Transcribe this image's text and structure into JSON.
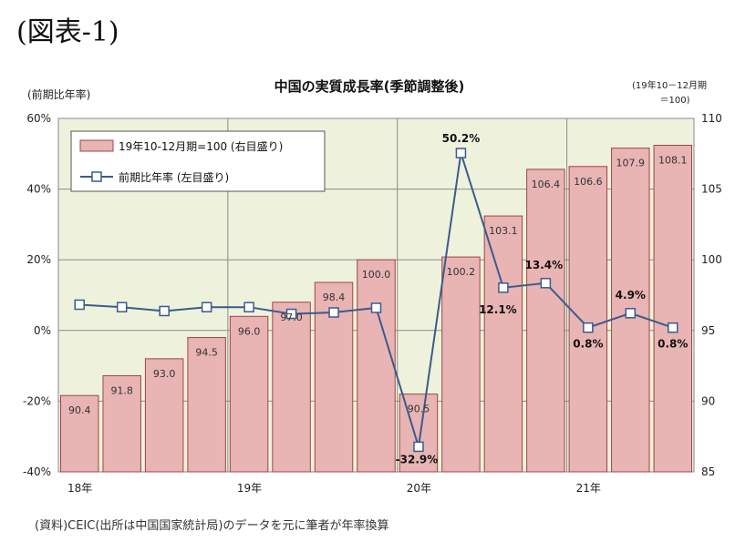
{
  "figure_label": "(図表-1)",
  "source_note": "(資料)CEIC(出所は中国国家統計局)のデータを元に筆者が年率換算",
  "chart_data": {
    "type": "bar+line",
    "title": "中国の実質成長率(季節調整後)",
    "left_axis_label": "(前期比年率)",
    "right_axis_label_line1": "(19年10－12月期",
    "right_axis_label_line2": "＝100)",
    "left_ylim": [
      -40,
      60
    ],
    "left_ticks": [
      "-40%",
      "-20%",
      "0%",
      "20%",
      "40%",
      "60%"
    ],
    "left_tick_values": [
      -40,
      -20,
      0,
      20,
      40,
      60
    ],
    "right_ylim": [
      85,
      110
    ],
    "right_ticks": [
      "85",
      "90",
      "95",
      "100",
      "105",
      "110"
    ],
    "right_tick_values": [
      85,
      90,
      95,
      100,
      105,
      110
    ],
    "x_year_labels": [
      {
        "label": "18年",
        "index": 0
      },
      {
        "label": "19年",
        "index": 4
      },
      {
        "label": "20年",
        "index": 8
      },
      {
        "label": "21年",
        "index": 12
      }
    ],
    "grid": true,
    "legend_position": "top-left",
    "series": [
      {
        "name": "19年10-12月期=100 (右目盛り)",
        "kind": "bar",
        "axis": "right",
        "color": "#e8b4b4",
        "values": [
          90.4,
          91.8,
          93.0,
          94.5,
          96.0,
          97.0,
          98.4,
          100.0,
          90.5,
          100.2,
          103.1,
          106.4,
          106.6,
          107.9,
          108.1
        ],
        "labels": [
          "90.4",
          "91.8",
          "93.0",
          "94.5",
          "96.0",
          "97.0",
          "98.4",
          "100.0",
          "90.5",
          "100.2",
          "103.1",
          "106.4",
          "106.6",
          "107.9",
          "108.1"
        ]
      },
      {
        "name": "前期比年率 (左目盛り)",
        "kind": "line",
        "axis": "left",
        "color": "#3b5b8c",
        "values": [
          7.3,
          6.6,
          5.5,
          6.6,
          6.6,
          4.7,
          5.1,
          6.4,
          -32.9,
          50.2,
          12.1,
          13.4,
          0.8,
          4.9,
          0.8
        ]
      }
    ],
    "annotations": [
      {
        "text": "-32.9%",
        "index": 8
      },
      {
        "text": "50.2%",
        "index": 9
      },
      {
        "text": "12.1%",
        "index": 10
      },
      {
        "text": "13.4%",
        "index": 11
      },
      {
        "text": "0.8%",
        "index": 12
      },
      {
        "text": "4.9%",
        "index": 13
      },
      {
        "text": "0.8%",
        "index": 14
      }
    ],
    "colors": {
      "plot_bg": "#eef2dc",
      "bar_fill": "#e8b4b4",
      "bar_stroke": "#a04545",
      "line": "#3b5b8c",
      "grid": "#8a8a8a"
    }
  }
}
